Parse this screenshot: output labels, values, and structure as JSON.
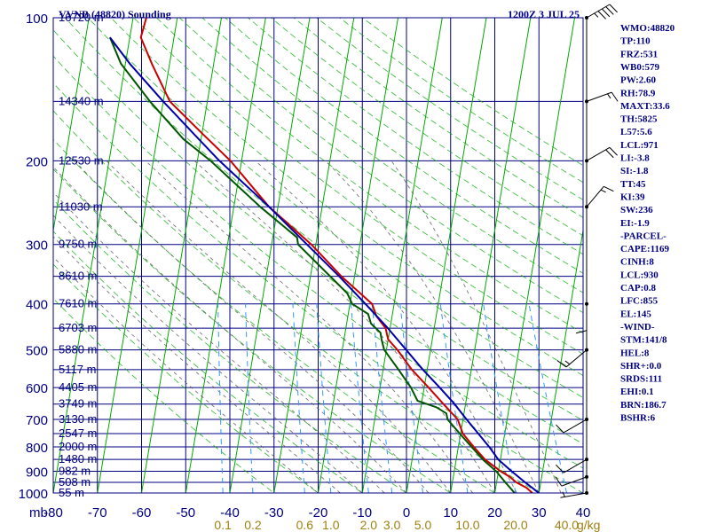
{
  "header": {
    "title": "VVNB (48820) Sounding",
    "time": "1200Z  3 JUL 25"
  },
  "colors": {
    "background": "#ffffff",
    "frame": "#000080",
    "isobar": "#000080",
    "isotherm": "#000080",
    "skewed_isotherm": "#00aa00",
    "dry_adiabat": "#00aa00",
    "moist_adiabat": "#555555",
    "mixing_ratio": "#3399ff",
    "temperature": "#cc0000",
    "dewpoint": "#005500",
    "parcel": "#0000aa",
    "mixing_ratio_labels": "#a08010",
    "wind_barbs": "#000000"
  },
  "pressure_labels": [
    "100",
    "200",
    "300",
    "400",
    "500",
    "600",
    "700",
    "800",
    "900",
    "1000"
  ],
  "height_labels": [
    {
      "p": 100,
      "text": "16720 m"
    },
    {
      "p": 150,
      "text": "14340 m"
    },
    {
      "p": 200,
      "text": "12530 m"
    },
    {
      "p": 250,
      "text": "11030 m"
    },
    {
      "p": 300,
      "text": "9750 m"
    },
    {
      "p": 350,
      "text": "8610 m"
    },
    {
      "p": 400,
      "text": "7610 m"
    },
    {
      "p": 450,
      "text": "6703 m"
    },
    {
      "p": 500,
      "text": "5880 m"
    },
    {
      "p": 550,
      "text": "5117 m"
    },
    {
      "p": 600,
      "text": "4405 m"
    },
    {
      "p": 650,
      "text": "3749 m"
    },
    {
      "p": 700,
      "text": "3130 m"
    },
    {
      "p": 750,
      "text": "2547 m"
    },
    {
      "p": 800,
      "text": "2000 m"
    },
    {
      "p": 850,
      "text": "1480 m"
    },
    {
      "p": 900,
      "text": "982 m"
    },
    {
      "p": 950,
      "text": "508 m"
    },
    {
      "p": 1000,
      "text": "55 m"
    }
  ],
  "mb_label": "mb",
  "temperature_labels": [
    "-80",
    "-70",
    "-60",
    "-50",
    "-40",
    "-30",
    "-20",
    "-10",
    "0",
    "10",
    "20",
    "30",
    "40"
  ],
  "mixing_ratio_labels": [
    {
      "w": 0.1,
      "text": "0.1"
    },
    {
      "w": 0.2,
      "text": "0.2"
    },
    {
      "w": 0.6,
      "text": "0.6"
    },
    {
      "w": 1.0,
      "text": "1.0"
    },
    {
      "w": 2.0,
      "text": "2.0"
    },
    {
      "w": 3.0,
      "text": "3.0"
    },
    {
      "w": 5.0,
      "text": "5.0"
    },
    {
      "w": 10.0,
      "text": "10.0"
    },
    {
      "w": 20.0,
      "text": "20.0"
    },
    {
      "w": 40.0,
      "text": "40.0"
    }
  ],
  "mixing_ratio_unit": "g/kg",
  "indices": [
    "WMO:48820",
    "TP:110",
    "FRZ:531",
    "WB0:579",
    "PW:2.60",
    "RH:78.9",
    "MAXT:33.6",
    "TH:5825",
    "L57:5.6",
    "LCL:971",
    "LI:-3.8",
    "SI:-1.8",
    "TT:45",
    "KI:39",
    "SW:236",
    "EI:-1.9",
    "-PARCEL-",
    "CAPE:1169",
    "CINH:8",
    "LCL:930",
    "CAP:0.8",
    "LFC:855",
    "EL:145",
    "-WIND-",
    "STM:141/8",
    "HEL:8",
    "SHR+:0.0",
    "SRDS:111",
    "EHI:0.1",
    "BRN:186.7",
    "BSHR:6"
  ],
  "chart_data": {
    "type": "line",
    "subtype": "skew-T log-P sounding",
    "title": "VVNB (48820) Sounding",
    "time": "1200Z  3 JUL 25",
    "x_unit": "°C",
    "y_unit": "mb",
    "xlim": [
      -80,
      40
    ],
    "ylim": [
      1000,
      100
    ],
    "y_scale": "log",
    "series": [
      {
        "key": "temperature",
        "points": [
          [
            1000,
            28.5
          ],
          [
            975,
            27.0
          ],
          [
            950,
            24.5
          ],
          [
            925,
            22.8
          ],
          [
            900,
            20.5
          ],
          [
            875,
            18.5
          ],
          [
            850,
            16.5
          ],
          [
            800,
            13.5
          ],
          [
            750,
            10.5
          ],
          [
            700,
            8.8
          ],
          [
            650,
            5.0
          ],
          [
            600,
            1.0
          ],
          [
            550,
            -3.5
          ],
          [
            500,
            -7.5
          ],
          [
            475,
            -10.0
          ],
          [
            450,
            -11.0
          ],
          [
            425,
            -13.5
          ],
          [
            400,
            -15.0
          ],
          [
            350,
            -23.0
          ],
          [
            300,
            -31.0
          ],
          [
            250,
            -42.0
          ],
          [
            200,
            -52.5
          ],
          [
            175,
            -60.0
          ],
          [
            150,
            -68.5
          ],
          [
            125,
            -74.0
          ],
          [
            110,
            -77.5
          ],
          [
            100,
            -77.0
          ]
        ]
      },
      {
        "key": "dewpoint",
        "points": [
          [
            1000,
            24.5
          ],
          [
            950,
            22.0
          ],
          [
            900,
            19.5
          ],
          [
            850,
            16.0
          ],
          [
            800,
            13.0
          ],
          [
            750,
            9.8
          ],
          [
            700,
            6.5
          ],
          [
            680,
            6.0
          ],
          [
            660,
            3.5
          ],
          [
            640,
            -1.0
          ],
          [
            600,
            -3.0
          ],
          [
            550,
            -6.5
          ],
          [
            500,
            -10.5
          ],
          [
            475,
            -11.5
          ],
          [
            460,
            -12.0
          ],
          [
            440,
            -14.5
          ],
          [
            420,
            -15.5
          ],
          [
            400,
            -19.5
          ],
          [
            380,
            -21.0
          ],
          [
            300,
            -34.0
          ],
          [
            290,
            -34.5
          ],
          [
            250,
            -44.0
          ],
          [
            200,
            -57.0
          ],
          [
            180,
            -64.0
          ],
          [
            150,
            -73.0
          ],
          [
            125,
            -81.0
          ],
          [
            110,
            -84.5
          ]
        ]
      },
      {
        "key": "parcel",
        "points": [
          [
            1000,
            30.0
          ],
          [
            950,
            26.5
          ],
          [
            900,
            23.0
          ],
          [
            850,
            19.5
          ],
          [
            800,
            17.0
          ],
          [
            750,
            14.0
          ],
          [
            700,
            10.8
          ],
          [
            650,
            7.5
          ],
          [
            600,
            3.5
          ],
          [
            550,
            -1.0
          ],
          [
            500,
            -5.5
          ],
          [
            450,
            -10.5
          ],
          [
            400,
            -16.5
          ],
          [
            350,
            -23.5
          ],
          [
            300,
            -32.0
          ],
          [
            250,
            -42.0
          ],
          [
            200,
            -55.0
          ],
          [
            175,
            -62.0
          ],
          [
            150,
            -70.0
          ],
          [
            125,
            -79.0
          ],
          [
            110,
            -84.5
          ]
        ]
      }
    ],
    "winds": [
      {
        "p": 1000,
        "dir": 260,
        "spd": 5
      },
      {
        "p": 925,
        "dir": 250,
        "spd": 10
      },
      {
        "p": 850,
        "dir": 240,
        "spd": 10
      },
      {
        "p": 700,
        "dir": 240,
        "spd": 10
      },
      {
        "p": 500,
        "dir": 230,
        "spd": 15
      },
      {
        "p": 400,
        "dir": 180,
        "spd": 10
      },
      {
        "p": 250,
        "dir": 40,
        "spd": 15
      },
      {
        "p": 200,
        "dir": 60,
        "spd": 20
      },
      {
        "p": 150,
        "dir": 70,
        "spd": 15
      },
      {
        "p": 100,
        "dir": 60,
        "spd": 45
      }
    ]
  }
}
